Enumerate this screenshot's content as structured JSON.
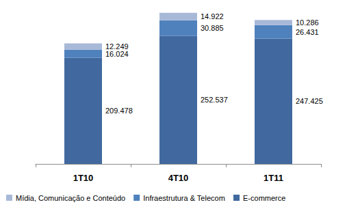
{
  "chart_data": {
    "type": "bar",
    "stacked": true,
    "data_labels": true,
    "tick_labels": "x",
    "grid": false,
    "legend": "bottom",
    "categories": [
      "1T10",
      "4T10",
      "1T11"
    ],
    "ylim": [
      0,
      310000
    ],
    "series": [
      {
        "name": "E-commerce",
        "color": "#41699f",
        "values": [
          209478,
          252537,
          247425
        ],
        "value_labels": [
          "209.478",
          "252.537",
          "247.425"
        ]
      },
      {
        "name": "Infraestrutura & Telecom",
        "color": "#4f81bd",
        "values": [
          16024,
          30885,
          26431
        ],
        "value_labels": [
          "16.024",
          "30.885",
          "26.431"
        ]
      },
      {
        "name": "Mídia, Comunicação e Conteúdo",
        "color": "#a8b9d8",
        "values": [
          12249,
          14922,
          10286
        ],
        "value_labels": [
          "12.249",
          "14.922",
          "10.286"
        ]
      }
    ]
  }
}
